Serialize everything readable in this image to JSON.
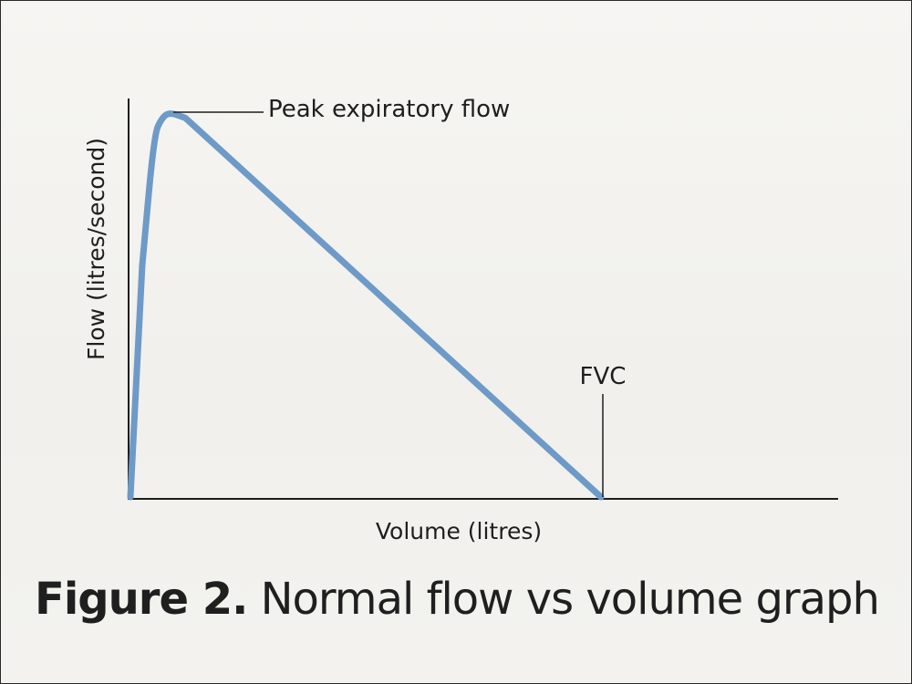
{
  "caption": {
    "figure_number": "Figure 2.",
    "text": "Normal flow vs volume graph"
  },
  "colors": {
    "curve": "#6e9ac8",
    "axis": "#1e1e1e",
    "leader_line": "#1e1e1e"
  },
  "chart_data": {
    "type": "line",
    "title": "",
    "xlabel": "Volume (litres)",
    "ylabel": "Flow (litres/second)",
    "grid": false,
    "legend": "none",
    "ticks": "none",
    "xlim": [
      0,
      1
    ],
    "ylim": [
      0,
      1
    ],
    "series": [
      {
        "values_x": [
          0.0,
          0.015,
          0.03,
          0.04,
          0.05,
          0.07,
          0.6
        ],
        "values_y": [
          0.0,
          0.6,
          0.94,
          0.985,
          1.0,
          0.985,
          0.0
        ]
      }
    ],
    "annotations": [
      {
        "label": "Peak expiratory flow",
        "x": 0.05,
        "y": 1.0
      },
      {
        "label": "FVC",
        "x": 0.6,
        "y": 0.0
      }
    ]
  }
}
